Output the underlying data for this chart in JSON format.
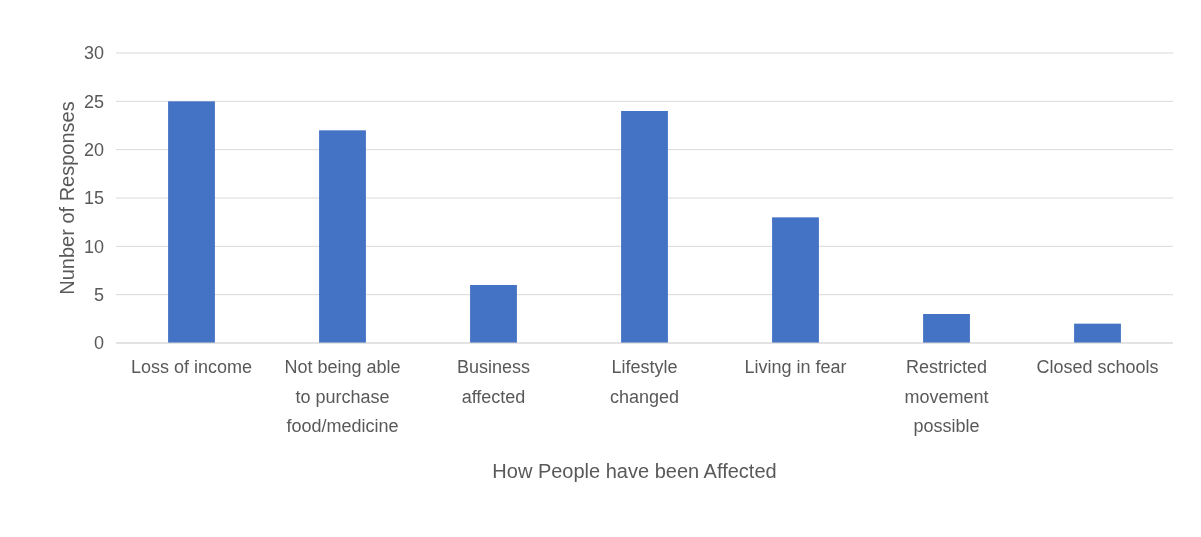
{
  "chart_data": {
    "type": "bar",
    "categories": [
      "Loss of income",
      "Not being able to purchase food/medicine",
      "Business affected",
      "Lifestyle changed",
      "Living in fear",
      "Restricted movement possible",
      "Closed schools"
    ],
    "values": [
      25,
      22,
      6,
      24,
      13,
      3,
      2
    ],
    "color": "#4472c4",
    "xlabel": "How People have been Affected",
    "ylabel": "Nunber of Responses",
    "ylim": [
      0,
      30
    ],
    "yticks": [
      0,
      5,
      10,
      15,
      20,
      25,
      30
    ],
    "grid": "y"
  }
}
